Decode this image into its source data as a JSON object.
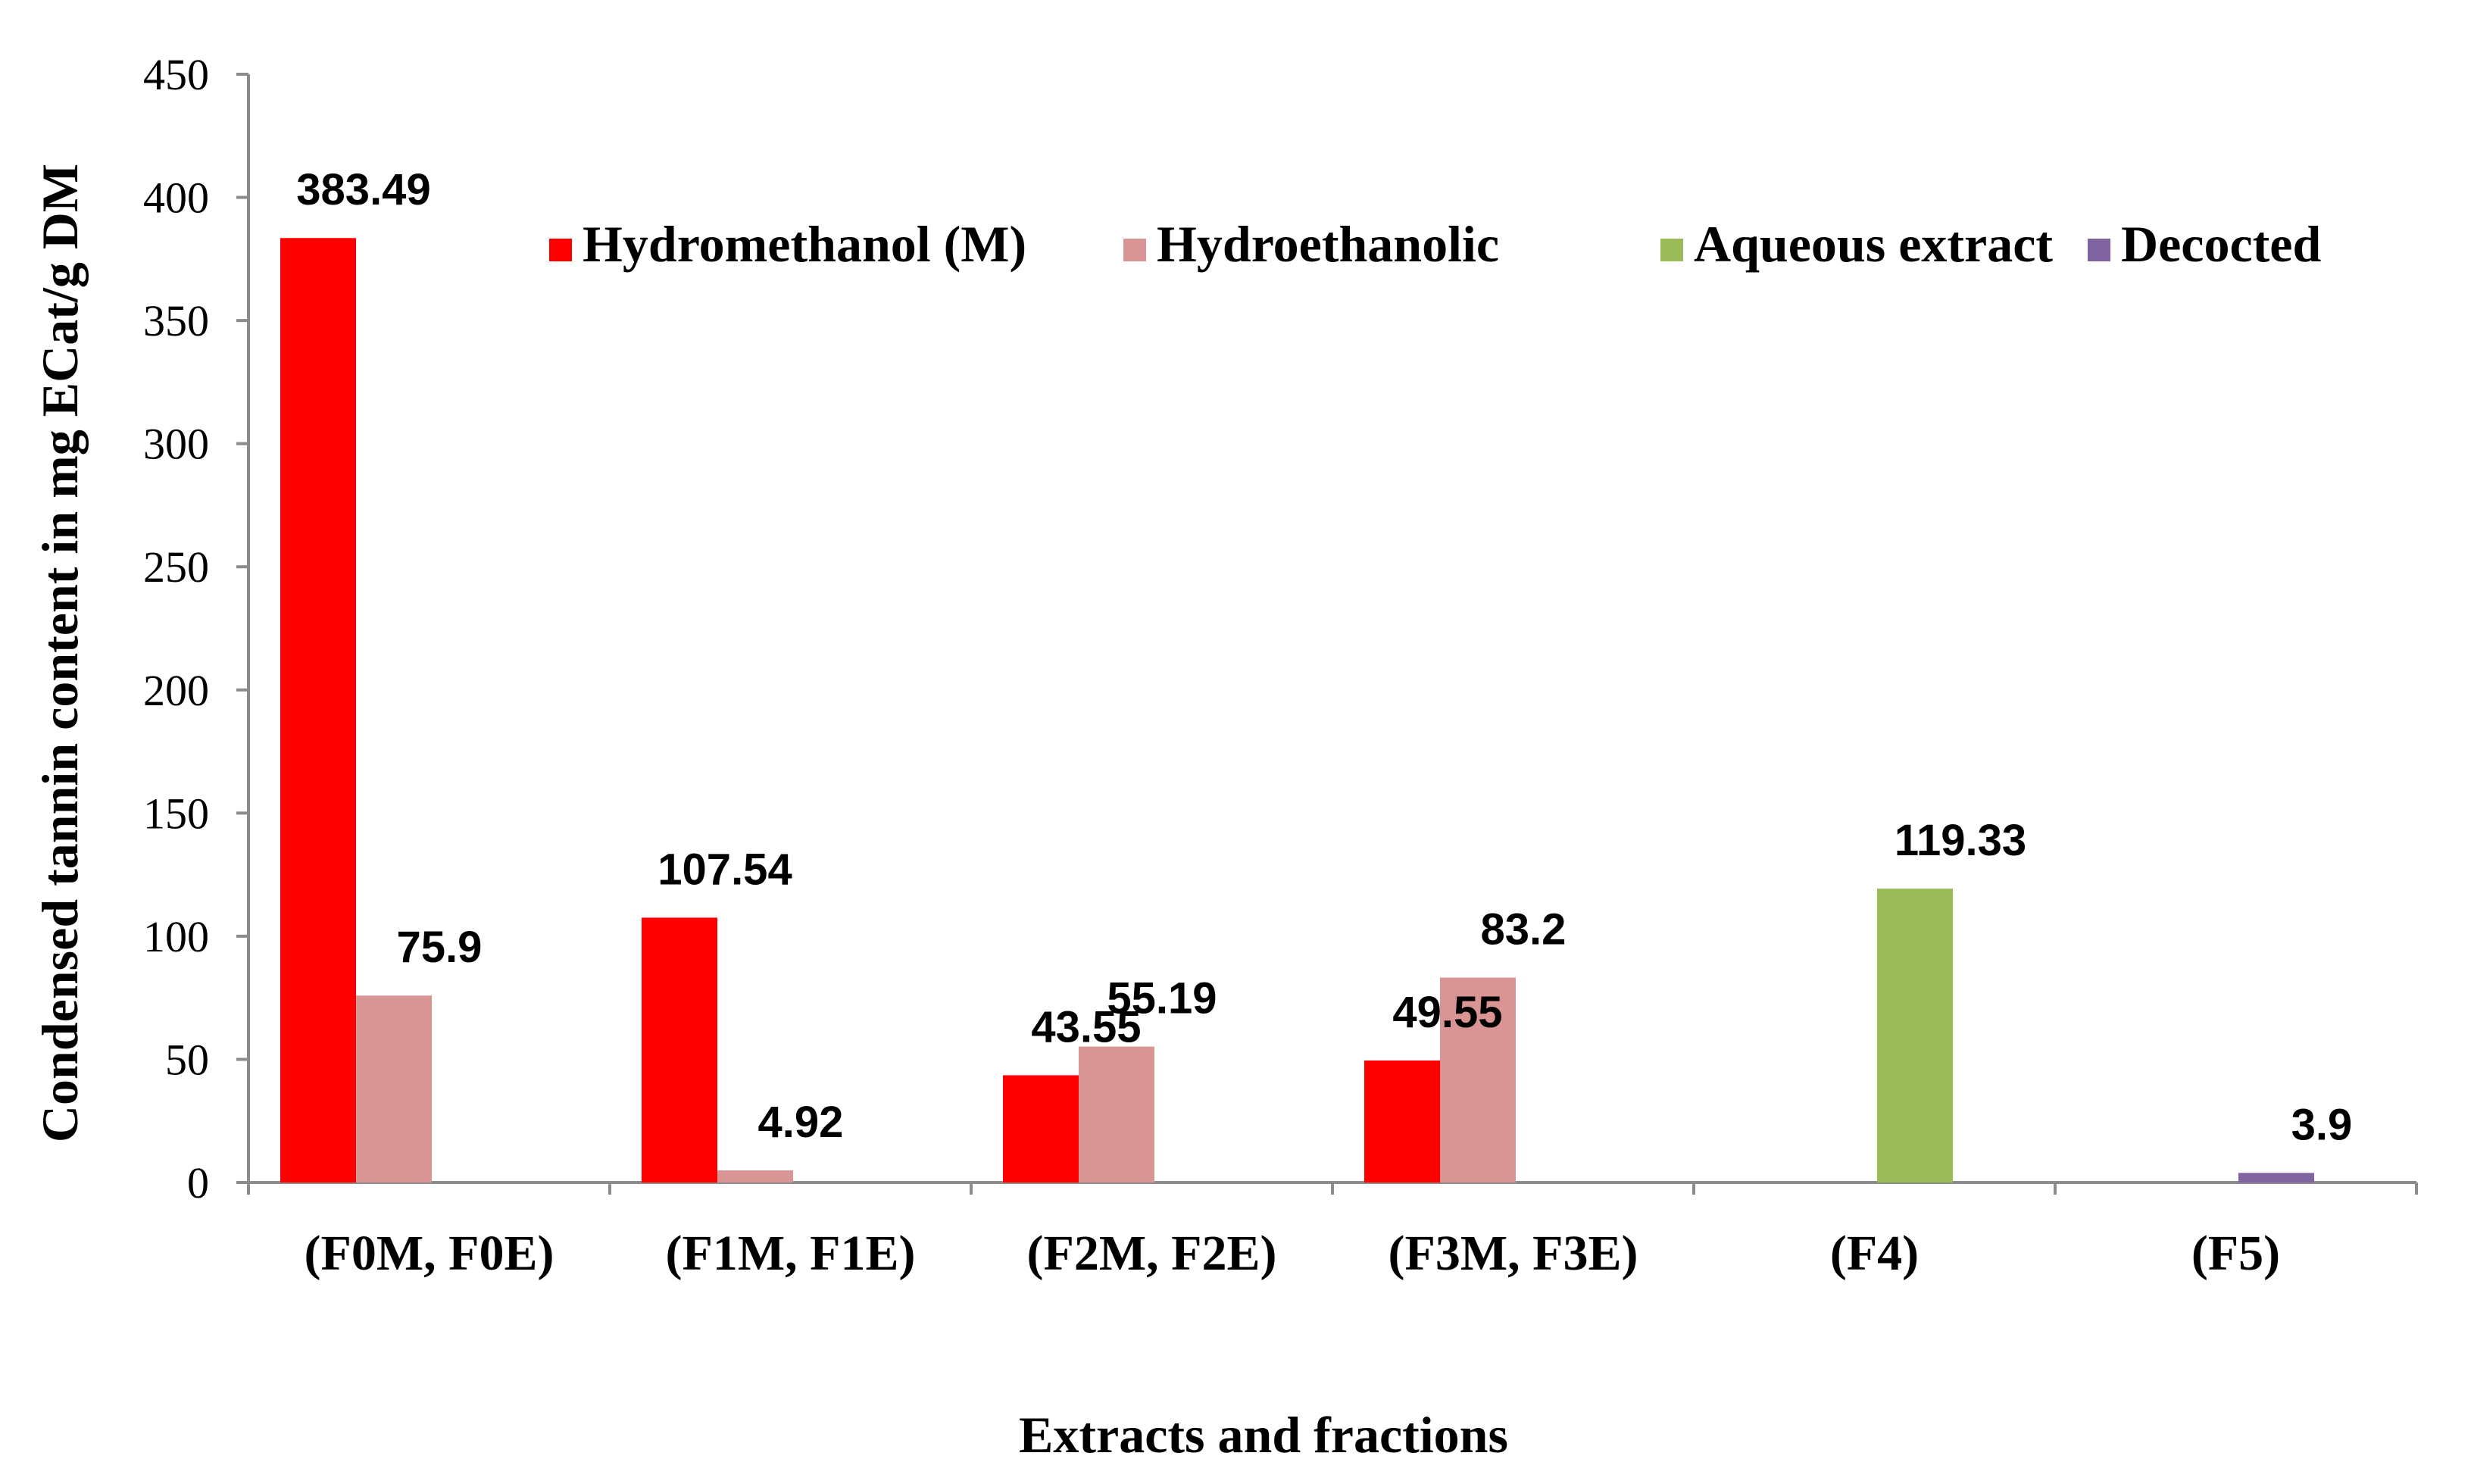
{
  "chart_data": {
    "type": "bar",
    "title": "",
    "xlabel": "Extracts and fractions",
    "ylabel": "Condensed tannin content in mg ECat/g DM",
    "ylim": [
      0,
      450
    ],
    "yticks": [
      0,
      50,
      100,
      150,
      200,
      250,
      300,
      350,
      400,
      450
    ],
    "grid": false,
    "legend_position": "top-right",
    "categories": [
      "(F0M, F0E)",
      "(F1M, F1E)",
      "(F2M, F2E)",
      "(F3M, F3E)",
      "(F4)",
      "(F5)"
    ],
    "series": [
      {
        "name": "Hydromethanol (M)",
        "color": "#ff0000",
        "values": [
          383.49,
          107.54,
          43.55,
          49.55,
          null,
          null
        ]
      },
      {
        "name": "Hydroethanolic",
        "color": "#d99594",
        "values": [
          75.9,
          4.92,
          55.19,
          83.2,
          null,
          null
        ]
      },
      {
        "name": "Aqueous extract",
        "color": "#9bbb59",
        "values": [
          null,
          null,
          null,
          null,
          119.33,
          null
        ]
      },
      {
        "name": "Decocted",
        "color": "#8064a2",
        "values": [
          null,
          null,
          null,
          null,
          null,
          3.9
        ]
      }
    ],
    "data_labels": [
      {
        "series": 0,
        "category": 0,
        "text": "383.49"
      },
      {
        "series": 1,
        "category": 0,
        "text": "75.9"
      },
      {
        "series": 0,
        "category": 1,
        "text": "107.54"
      },
      {
        "series": 1,
        "category": 1,
        "text": "4.92"
      },
      {
        "series": 0,
        "category": 2,
        "text": "43.55"
      },
      {
        "series": 1,
        "category": 2,
        "text": "55.19"
      },
      {
        "series": 0,
        "category": 3,
        "text": "49.55"
      },
      {
        "series": 1,
        "category": 3,
        "text": "83.2"
      },
      {
        "series": 2,
        "category": 4,
        "text": "119.33"
      },
      {
        "series": 3,
        "category": 5,
        "text": "3.9"
      }
    ]
  }
}
